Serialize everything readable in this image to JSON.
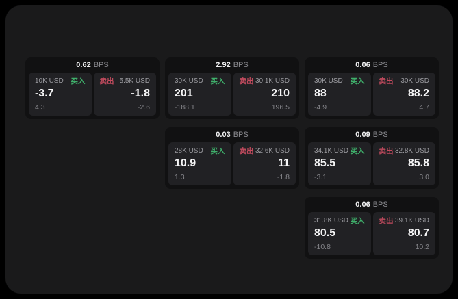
{
  "theme": {
    "page_bg": "#000000",
    "container_bg": "#1a1a1b",
    "card_bg": "#111112",
    "panel_bg": "#212124",
    "buy_color": "#3fae6a",
    "sell_color": "#c24b5e",
    "text_primary": "#f5f5f6",
    "text_muted": "#8b8b90"
  },
  "labels": {
    "bps_unit": "BPS",
    "buy": "买入",
    "sell": "卖出"
  },
  "cards": [
    {
      "col": 1,
      "row": 1,
      "bps": "0.62",
      "buy": {
        "amount": "10K USD",
        "price": "-3.7",
        "sub": "4.3"
      },
      "sell": {
        "amount": "5.5K USD",
        "price": "-1.8",
        "sub": "-2.6"
      }
    },
    {
      "col": 2,
      "row": 1,
      "bps": "2.92",
      "buy": {
        "amount": "30K USD",
        "price": "201",
        "sub": "-188.1"
      },
      "sell": {
        "amount": "30.1K USD",
        "price": "210",
        "sub": "196.5"
      }
    },
    {
      "col": 3,
      "row": 1,
      "bps": "0.06",
      "buy": {
        "amount": "30K USD",
        "price": "88",
        "sub": "-4.9"
      },
      "sell": {
        "amount": "30K USD",
        "price": "88.2",
        "sub": "4.7"
      }
    },
    {
      "col": 2,
      "row": 2,
      "bps": "0.03",
      "buy": {
        "amount": "28K USD",
        "price": "10.9",
        "sub": "1.3"
      },
      "sell": {
        "amount": "32.6K USD",
        "price": "11",
        "sub": "-1.8"
      }
    },
    {
      "col": 3,
      "row": 2,
      "bps": "0.09",
      "buy": {
        "amount": "34.1K USD",
        "price": "85.5",
        "sub": "-3.1"
      },
      "sell": {
        "amount": "32.8K USD",
        "price": "85.8",
        "sub": "3.0"
      }
    },
    {
      "col": 3,
      "row": 3,
      "bps": "0.06",
      "buy": {
        "amount": "31.8K USD",
        "price": "80.5",
        "sub": "-10.8"
      },
      "sell": {
        "amount": "39.1K USD",
        "price": "80.7",
        "sub": "10.2"
      }
    }
  ]
}
